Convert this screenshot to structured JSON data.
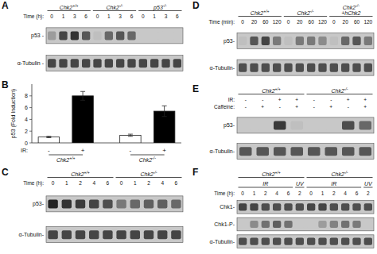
{
  "chart_data": [
    {
      "type": "blot",
      "title": "A",
      "color": "#c8c8c8",
      "groups": [
        [
          {
            "name": "Chk2+/+",
            "lanes": 4
          },
          {
            "name": "Chk2-/-",
            "lanes": 4
          },
          {
            "name": "p53-/-",
            "lanes": 4
          }
        ]
      ],
      "header_rows": [
        {
          "label": "Time (h):",
          "categories": [
            "0",
            "1",
            "3",
            "6",
            "0",
            "1",
            "3",
            "6",
            "0",
            "1",
            "3",
            "6"
          ]
        }
      ],
      "series": [
        {
          "name": "p53 -",
          "values": [
            0.25,
            0.75,
            0.85,
            0.65,
            0.05,
            0.55,
            0.65,
            0.55,
            0.0,
            0.0,
            0.0,
            0.0
          ]
        },
        {
          "name": "α-Tubulin -",
          "values": [
            0.75,
            0.75,
            0.75,
            0.75,
            0.75,
            0.75,
            0.75,
            0.75,
            0.75,
            0.75,
            0.75,
            0.75
          ]
        }
      ]
    },
    {
      "type": "bar",
      "title": "B",
      "ylabel": "p53 (Fold Induction)",
      "xlabel": "IR:",
      "categories": [
        "-",
        "+",
        "-",
        "+"
      ],
      "values": [
        1.0,
        8.0,
        1.3,
        5.4
      ],
      "errors": [
        0.12,
        0.75,
        0.18,
        0.9
      ],
      "colors": [
        "white",
        "black",
        "white",
        "black"
      ],
      "ylim": [
        0,
        10
      ],
      "yticks": [
        0,
        2,
        4,
        6,
        8
      ],
      "grid": false,
      "groups": [
        [
          {
            "name": "Chk2+/+",
            "lanes": 2
          },
          {
            "name": "Chk2-/-",
            "lanes": 2
          }
        ]
      ]
    },
    {
      "type": "blot",
      "title": "C",
      "color": "#c8c8c8",
      "groups": [
        [
          {
            "name": "Chk2+/+",
            "lanes": 5
          },
          {
            "name": "Chk2-/-",
            "lanes": 5
          }
        ]
      ],
      "header_rows": [
        {
          "label": "Time (h):",
          "categories": [
            "0",
            "1",
            "2",
            "4",
            "6",
            "0",
            "1",
            "2",
            "4",
            "6"
          ]
        }
      ],
      "series": [
        {
          "name": "p53-",
          "values": [
            0.95,
            0.85,
            0.8,
            0.75,
            0.7,
            0.45,
            0.55,
            0.6,
            0.6,
            0.55
          ]
        },
        {
          "name": "α-Tubulin-",
          "values": [
            0.75,
            0.75,
            0.75,
            0.75,
            0.75,
            0.75,
            0.75,
            0.75,
            0.75,
            0.75
          ]
        }
      ]
    },
    {
      "type": "blot",
      "title": "D",
      "color": "#c8c8c8",
      "groups": [
        [
          {
            "name": "Chk2+/+",
            "lanes": 4
          },
          {
            "name": "Chk2-/-",
            "lanes": 4
          },
          {
            "name": "Chk2-/-\n+hChk2",
            "lanes": 4
          }
        ]
      ],
      "header_rows": [
        {
          "label": "Time (min):",
          "categories": [
            "0",
            "20",
            "60",
            "120",
            "0",
            "20",
            "60",
            "120",
            "0",
            "20",
            "60",
            "120"
          ]
        }
      ],
      "series": [
        {
          "name": "p53-",
          "values": [
            0.05,
            0.65,
            0.75,
            0.45,
            0.05,
            0.45,
            0.45,
            0.35,
            0.05,
            0.55,
            0.65,
            0.45
          ]
        },
        {
          "name": "α-Tubulin-",
          "values": [
            0.7,
            0.7,
            0.7,
            0.7,
            0.7,
            0.7,
            0.7,
            0.7,
            0.7,
            0.7,
            0.7,
            0.7
          ]
        }
      ]
    },
    {
      "type": "blot",
      "title": "E",
      "color": "#c8c8c8",
      "groups": [
        [
          {
            "name": "Chk2+/+",
            "lanes": 4
          },
          {
            "name": "Chk2-/-",
            "lanes": 4
          }
        ]
      ],
      "header_rows": [
        {
          "label": "IR:",
          "categories": [
            "-",
            "-",
            "+",
            "+",
            "-",
            "-",
            "+",
            "+"
          ]
        },
        {
          "label": "Caffeine:",
          "categories": [
            "-",
            "+",
            "-",
            "+",
            "-",
            "+",
            "-",
            "+"
          ]
        }
      ],
      "series": [
        {
          "name": "p53-",
          "values": [
            0.0,
            0.0,
            0.82,
            0.05,
            0.0,
            0.0,
            0.7,
            0.55
          ]
        },
        {
          "name": "α-Tubulin-",
          "values": [
            0.65,
            0.65,
            0.65,
            0.65,
            0.65,
            0.65,
            0.65,
            0.65
          ]
        }
      ]
    },
    {
      "type": "blot",
      "title": "F",
      "color": "#c8c8c8",
      "groups": [
        [
          {
            "name": "Chk2+/+",
            "lanes": 6
          },
          {
            "name": "Chk2-/-",
            "lanes": 6
          }
        ],
        [
          {
            "name": "IR",
            "lanes": 5
          },
          {
            "name": "UV",
            "lanes": 1
          },
          {
            "name": "IR",
            "lanes": 5
          },
          {
            "name": "UV",
            "lanes": 1
          }
        ]
      ],
      "header_rows": [
        {
          "label": "Time (h):",
          "categories": [
            "0",
            "1",
            "2",
            "4",
            "6",
            "2",
            "0",
            "1",
            "2",
            "4",
            "6",
            "2"
          ]
        }
      ],
      "series": [
        {
          "name": "Chk1-",
          "values": [
            0.75,
            0.75,
            0.7,
            0.7,
            0.7,
            0.7,
            0.75,
            0.75,
            0.7,
            0.7,
            0.7,
            0.7
          ]
        },
        {
          "name": "Chk1-P-",
          "values": [
            0.0,
            0.35,
            0.5,
            0.6,
            0.5,
            0.0,
            0.0,
            0.25,
            0.4,
            0.5,
            0.45,
            0.0
          ]
        },
        {
          "name": "α-Tubulin-",
          "values": [
            0.7,
            0.7,
            0.7,
            0.7,
            0.7,
            0.7,
            0.7,
            0.7,
            0.7,
            0.7,
            0.7,
            0.7
          ]
        }
      ]
    }
  ]
}
